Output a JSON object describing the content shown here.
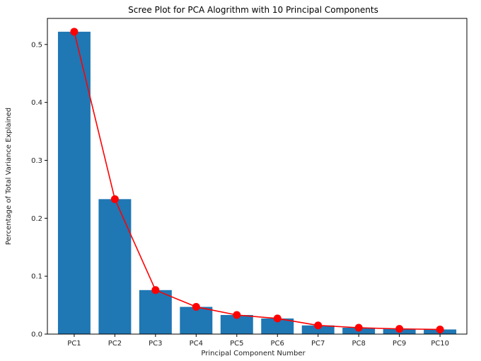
{
  "chart_data": {
    "type": "bar",
    "title": "Scree Plot for PCA Alogrithm with 10 Principal Components",
    "xlabel": "Principal Component Number",
    "ylabel": "Percentage of Total Variance Explained",
    "categories": [
      "PC1",
      "PC2",
      "PC3",
      "PC4",
      "PC5",
      "PC6",
      "PC7",
      "PC8",
      "PC9",
      "PC10"
    ],
    "series": [
      {
        "type": "bar",
        "values": [
          0.522,
          0.233,
          0.076,
          0.047,
          0.033,
          0.027,
          0.015,
          0.011,
          0.009,
          0.008
        ],
        "color": "#1f77b4"
      },
      {
        "type": "line",
        "values": [
          0.522,
          0.233,
          0.076,
          0.047,
          0.033,
          0.027,
          0.015,
          0.011,
          0.009,
          0.008
        ],
        "color": "#ff0000",
        "marker": "circle"
      }
    ],
    "ylim": [
      0,
      0.545
    ],
    "yticks": [
      0.0,
      0.1,
      0.2,
      0.3,
      0.4,
      0.5
    ],
    "ytick_labels": [
      "0.0",
      "0.1",
      "0.2",
      "0.3",
      "0.4",
      "0.5"
    ],
    "grid": false,
    "legend": "none"
  }
}
